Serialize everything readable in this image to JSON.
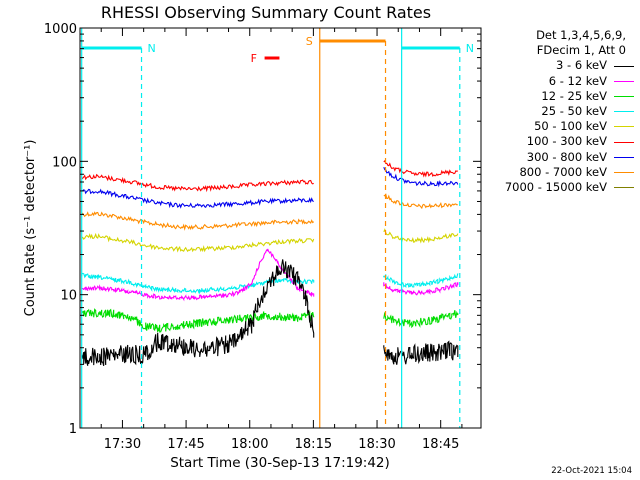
{
  "chart_data": {
    "type": "line",
    "title": "RHESSI Observing Summary Count Rates",
    "xlabel": "Start Time (30-Sep-13 17:19:42)",
    "ylabel": "Count Rate (s⁻¹ detector⁻¹)",
    "yscale": "log",
    "ylim": [
      1,
      1000
    ],
    "y_ticks": [
      {
        "value": 1,
        "label": "1"
      },
      {
        "value": 10,
        "label": "10"
      },
      {
        "value": 100,
        "label": "100"
      },
      {
        "value": 1000,
        "label": "1000"
      }
    ],
    "x_range_min": [
      20,
      75
    ],
    "x_ticks": [
      {
        "min": 30,
        "label": "17:30"
      },
      {
        "min": 45,
        "label": "17:45"
      },
      {
        "min": 60,
        "label": "18:00"
      },
      {
        "min": 75,
        "label": "18:15"
      },
      {
        "min": 90,
        "label": "18:30"
      },
      {
        "min": 105,
        "label": "18:45"
      }
    ],
    "legend_header": [
      "Det 1,3,4,5,6,9,",
      "FDecim 1, Att 0"
    ],
    "legend_position": "right",
    "series": [
      {
        "name": "3 - 6 keV",
        "color": "#000000",
        "seg1": [
          3.4,
          3.4,
          3.5,
          3.6,
          3.5,
          4.5,
          4.3,
          4.0,
          3.9,
          4.1,
          4.4,
          6.0,
          12.0,
          16.0,
          13.0,
          5.0
        ],
        "seg2": [
          4.0,
          3.5,
          3.4,
          3.5,
          3.6,
          3.7,
          3.6,
          3.7,
          3.8,
          3.8
        ]
      },
      {
        "name": "6 - 12 keV",
        "color": "#ff00ff",
        "seg1": [
          11.0,
          11.2,
          11.0,
          10.5,
          10.0,
          9.6,
          9.5,
          9.5,
          9.6,
          9.8,
          10.2,
          12.0,
          22.0,
          15.0,
          11.0,
          10.0
        ],
        "seg2": [
          12.0,
          11.0,
          10.5,
          10.4,
          10.3,
          10.5,
          10.7,
          11.0,
          11.4,
          12.0
        ]
      },
      {
        "name": "12 - 25 keV",
        "color": "#00dd00",
        "seg1": [
          7.2,
          7.3,
          7.2,
          6.9,
          5.8,
          5.6,
          5.8,
          6.0,
          6.2,
          6.4,
          6.6,
          6.8,
          7.0,
          6.8,
          6.7,
          7.0
        ],
        "seg2": [
          7.0,
          6.5,
          6.2,
          6.1,
          6.2,
          6.3,
          6.5,
          6.7,
          7.0,
          7.2
        ]
      },
      {
        "name": "25 - 50 keV",
        "color": "#00eeee",
        "seg1": [
          14.0,
          13.5,
          13.0,
          12.5,
          11.5,
          11.0,
          10.8,
          10.7,
          10.8,
          11.0,
          11.3,
          11.7,
          12.5,
          12.8,
          12.5,
          12.5
        ],
        "seg2": [
          14.0,
          12.8,
          12.0,
          11.8,
          11.8,
          12.0,
          12.3,
          12.7,
          13.3,
          14.0
        ]
      },
      {
        "name": "50 - 100 keV",
        "color": "#d4d400",
        "seg1": [
          27.0,
          27.5,
          26.0,
          25.0,
          23.5,
          22.5,
          22.0,
          21.8,
          22.0,
          22.3,
          22.8,
          23.5,
          24.3,
          25.0,
          25.3,
          25.5
        ],
        "seg2": [
          30.0,
          27.5,
          26.0,
          25.5,
          25.5,
          25.7,
          26.2,
          26.8,
          27.7,
          28.5
        ]
      },
      {
        "name": "100 - 300 keV",
        "color": "#ff0000",
        "seg1": [
          76.0,
          77.0,
          74.0,
          71.0,
          67.0,
          64.0,
          62.5,
          62.0,
          62.5,
          63.5,
          65.0,
          66.5,
          68.0,
          69.0,
          70.0,
          70.0
        ],
        "seg2": [
          100.0,
          90.0,
          85.0,
          82.0,
          80.0,
          80.0,
          80.5,
          81.5,
          83.0,
          84.0
        ]
      },
      {
        "name": "300 - 800 keV",
        "color": "#0000ee",
        "seg1": [
          59.0,
          60.0,
          57.0,
          54.0,
          51.0,
          48.5,
          47.0,
          46.5,
          46.8,
          47.3,
          48.0,
          49.0,
          50.0,
          50.5,
          51.0,
          51.0
        ],
        "seg2": [
          88.0,
          78.0,
          73.0,
          70.0,
          68.5,
          68.0,
          68.0,
          68.5,
          69.0,
          69.0
        ]
      },
      {
        "name": "800 - 7000 keV",
        "color": "#ff8c00",
        "seg1": [
          40.0,
          40.5,
          39.0,
          37.0,
          35.0,
          33.5,
          32.5,
          32.0,
          32.3,
          32.7,
          33.3,
          34.0,
          34.7,
          35.0,
          35.3,
          35.5
        ],
        "seg2": [
          56.0,
          51.0,
          48.5,
          47.0,
          46.0,
          46.0,
          46.3,
          46.8,
          47.5,
          48.0
        ]
      },
      {
        "name": "7000 - 15000 keV",
        "color": "#808000",
        "seg1": [],
        "seg2": []
      }
    ],
    "segment_ranges_min": [
      [
        20.4,
        75.0
      ],
      [
        91.6,
        109.0
      ]
    ],
    "flags": [
      {
        "label": "N",
        "color": "#00eeee",
        "start_min": 20.4,
        "end_min": 34.5
      },
      {
        "label": "N",
        "color": "#00eeee",
        "start_min": 95.8,
        "end_min": 109.5
      },
      {
        "label": "S",
        "color": "#ff8c00",
        "start_min": 76.5,
        "end_min": 92.0
      },
      {
        "label": "F",
        "color": "#ff0000",
        "start_min": 63.5,
        "end_min": 67.0
      }
    ]
  },
  "timestamp": "22-Oct-2021 15:04"
}
